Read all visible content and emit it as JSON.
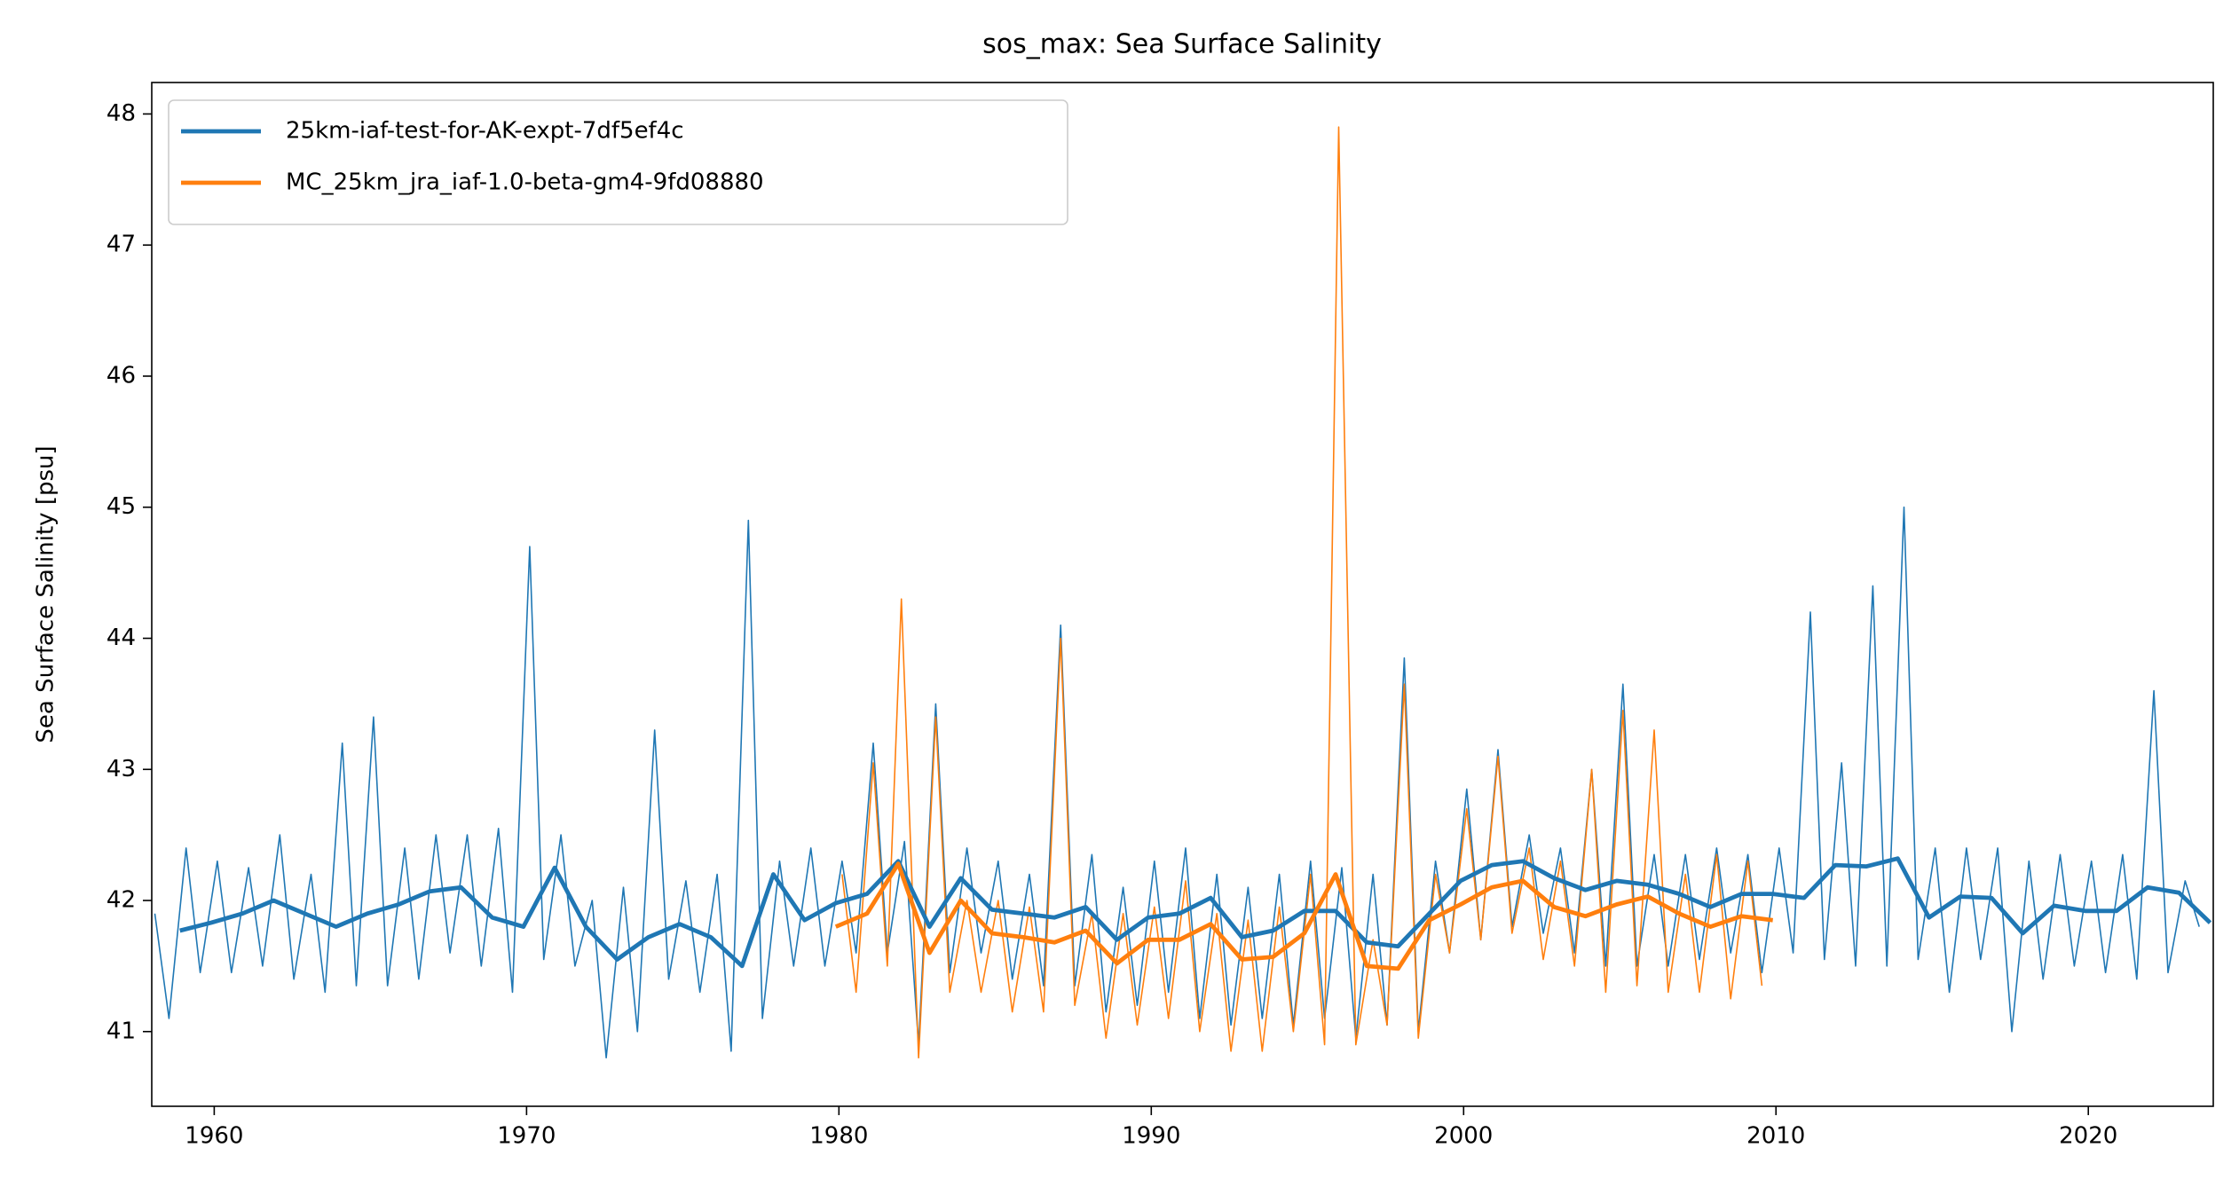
{
  "chart_data": {
    "type": "line",
    "title": "sos_max: Sea Surface Salinity",
    "ylabel": "Sea Surface Salinity [psu]",
    "xlim": [
      1958,
      2024
    ],
    "ylim": [
      40.43,
      48.24
    ],
    "xticks": [
      1960,
      1970,
      1980,
      1990,
      2000,
      2010,
      2020
    ],
    "yticks": [
      41,
      42,
      43,
      44,
      45,
      46,
      47,
      48
    ],
    "legend": "upper left",
    "grid": false,
    "series": [
      {
        "name": "25km-iaf-test-for-AK-expt-7df5ef4c",
        "color": "#1f77b4",
        "x": [
          1958.9,
          1959.9,
          1960.9,
          1961.9,
          1962.9,
          1963.9,
          1964.9,
          1965.9,
          1966.9,
          1967.9,
          1968.9,
          1969.9,
          1970.9,
          1971.9,
          1972.9,
          1973.9,
          1974.9,
          1975.9,
          1976.9,
          1977.9,
          1978.9,
          1979.9,
          1980.9,
          1981.9,
          1982.9,
          1983.9,
          1984.9,
          1985.9,
          1986.9,
          1987.9,
          1988.9,
          1989.9,
          1990.9,
          1991.9,
          1992.9,
          1993.9,
          1994.9,
          1995.9,
          1996.9,
          1997.9,
          1998.9,
          1999.9,
          2000.9,
          2001.9,
          2002.9,
          2003.9,
          2004.9,
          2005.9,
          2006.9,
          2007.9,
          2008.9,
          2009.9,
          2010.9,
          2011.9,
          2012.9,
          2013.9,
          2014.9,
          2015.9,
          2016.9,
          2017.9,
          2018.9,
          2019.9,
          2020.9,
          2021.9,
          2022.9,
          2023.9
        ],
        "values": [
          41.77,
          41.83,
          41.9,
          42.0,
          41.9,
          41.8,
          41.9,
          41.97,
          42.07,
          42.1,
          41.87,
          41.8,
          42.25,
          41.8,
          41.55,
          41.72,
          41.82,
          41.72,
          41.5,
          42.2,
          41.85,
          41.98,
          42.05,
          42.3,
          41.8,
          42.17,
          41.93,
          41.9,
          41.87,
          41.95,
          41.7,
          41.87,
          41.9,
          42.02,
          41.72,
          41.77,
          41.92,
          41.92,
          41.68,
          41.65,
          41.9,
          42.15,
          42.27,
          42.3,
          42.17,
          42.08,
          42.15,
          42.12,
          42.05,
          41.95,
          42.05,
          42.05,
          42.02,
          42.27,
          42.26,
          42.32,
          41.87,
          42.03,
          42.02,
          41.75,
          41.96,
          41.92,
          41.92,
          42.1,
          42.06,
          41.83
        ],
        "monthly_x": [
          1958.1,
          1958.55,
          1959.1,
          1959.55,
          1960.1,
          1960.55,
          1961.1,
          1961.55,
          1962.1,
          1962.55,
          1963.1,
          1963.55,
          1964.1,
          1964.55,
          1965.1,
          1965.55,
          1966.1,
          1966.55,
          1967.1,
          1967.55,
          1968.1,
          1968.55,
          1969.1,
          1969.55,
          1970.1,
          1970.55,
          1971.1,
          1971.55,
          1972.1,
          1972.55,
          1973.1,
          1973.55,
          1974.1,
          1974.55,
          1975.1,
          1975.55,
          1976.1,
          1976.55,
          1977.1,
          1977.55,
          1978.1,
          1978.55,
          1979.1,
          1979.55,
          1980.1,
          1980.55,
          1981.1,
          1981.55,
          1982.1,
          1982.55,
          1983.1,
          1983.55,
          1984.1,
          1984.55,
          1985.1,
          1985.55,
          1986.1,
          1986.55,
          1987.1,
          1987.55,
          1988.1,
          1988.55,
          1989.1,
          1989.55,
          1990.1,
          1990.55,
          1991.1,
          1991.55,
          1992.1,
          1992.55,
          1993.1,
          1993.55,
          1994.1,
          1994.55,
          1995.1,
          1995.55,
          1996.1,
          1996.55,
          1997.1,
          1997.55,
          1998.1,
          1998.55,
          1999.1,
          1999.55,
          2000.1,
          2000.55,
          2001.1,
          2001.55,
          2002.1,
          2002.55,
          2003.1,
          2003.55,
          2004.1,
          2004.55,
          2005.1,
          2005.55,
          2006.1,
          2006.55,
          2007.1,
          2007.55,
          2008.1,
          2008.55,
          2009.1,
          2009.55,
          2010.1,
          2010.55,
          2011.1,
          2011.55,
          2012.1,
          2012.55,
          2013.1,
          2013.55,
          2014.1,
          2014.55,
          2015.1,
          2015.55,
          2016.1,
          2016.55,
          2017.1,
          2017.55,
          2018.1,
          2018.55,
          2019.1,
          2019.55,
          2020.1,
          2020.55,
          2021.1,
          2021.55,
          2022.1,
          2022.55,
          2023.1,
          2023.55
        ],
        "monthly_values": [
          41.9,
          41.1,
          42.4,
          41.45,
          42.3,
          41.45,
          42.25,
          41.5,
          42.5,
          41.4,
          42.2,
          41.3,
          43.2,
          41.35,
          43.4,
          41.35,
          42.4,
          41.4,
          42.5,
          41.6,
          42.5,
          41.5,
          42.55,
          41.3,
          44.7,
          41.55,
          42.5,
          41.5,
          42.0,
          40.8,
          42.1,
          41.0,
          43.3,
          41.4,
          42.15,
          41.3,
          42.2,
          40.85,
          44.9,
          41.1,
          42.3,
          41.5,
          42.4,
          41.5,
          42.3,
          41.6,
          43.2,
          41.6,
          42.45,
          40.9,
          43.5,
          41.45,
          42.4,
          41.6,
          42.3,
          41.4,
          42.2,
          41.35,
          44.1,
          41.35,
          42.35,
          41.15,
          42.1,
          41.2,
          42.3,
          41.3,
          42.4,
          41.1,
          42.2,
          41.05,
          42.1,
          41.1,
          42.2,
          41.05,
          42.3,
          41.1,
          42.25,
          40.95,
          42.2,
          41.05,
          43.85,
          41.0,
          42.3,
          41.6,
          42.85,
          41.7,
          43.15,
          41.8,
          42.5,
          41.75,
          42.4,
          41.6,
          43.0,
          41.5,
          43.65,
          41.5,
          42.35,
          41.5,
          42.35,
          41.55,
          42.4,
          41.6,
          42.35,
          41.45,
          42.4,
          41.6,
          44.2,
          41.55,
          43.05,
          41.5,
          44.4,
          41.5,
          45.0,
          41.55,
          42.4,
          41.3,
          42.4,
          41.55,
          42.4,
          41.0,
          42.3,
          41.4,
          42.35,
          41.5,
          42.3,
          41.45,
          42.35,
          41.4,
          43.6,
          41.45,
          42.15,
          41.8
        ]
      },
      {
        "name": "MC_25km_jra_iaf-1.0-beta-gm4-9fd08880",
        "color": "#ff7f0e",
        "x": [
          1979.9,
          1980.9,
          1981.9,
          1982.9,
          1983.9,
          1984.9,
          1985.9,
          1986.9,
          1987.9,
          1988.9,
          1989.9,
          1990.9,
          1991.9,
          1992.9,
          1993.9,
          1994.9,
          1995.9,
          1996.9,
          1997.9,
          1998.9,
          1999.9,
          2000.9,
          2001.9,
          2002.9,
          2003.9,
          2004.9,
          2005.9,
          2006.9,
          2007.9,
          2008.9,
          2009.9
        ],
        "values": [
          41.8,
          41.9,
          42.28,
          41.6,
          42.0,
          41.75,
          41.72,
          41.68,
          41.77,
          41.52,
          41.7,
          41.7,
          41.82,
          41.55,
          41.57,
          41.75,
          42.2,
          41.5,
          41.48,
          41.85,
          41.97,
          42.1,
          42.15,
          41.95,
          41.88,
          41.97,
          42.03,
          41.9,
          41.8,
          41.88,
          41.85
        ],
        "monthly_x": [
          1980.1,
          1980.55,
          1981.1,
          1981.55,
          1982.0,
          1982.55,
          1983.1,
          1983.55,
          1984.1,
          1984.55,
          1985.1,
          1985.55,
          1986.1,
          1986.55,
          1987.1,
          1987.55,
          1988.1,
          1988.55,
          1989.1,
          1989.55,
          1990.1,
          1990.55,
          1991.1,
          1991.55,
          1992.1,
          1992.55,
          1993.1,
          1993.55,
          1994.1,
          1994.55,
          1995.1,
          1995.55,
          1996.0,
          1996.55,
          1997.1,
          1997.55,
          1998.1,
          1998.55,
          1999.1,
          1999.55,
          2000.1,
          2000.55,
          2001.1,
          2001.55,
          2002.1,
          2002.55,
          2003.1,
          2003.55,
          2004.1,
          2004.55,
          2005.1,
          2005.55,
          2006.1,
          2006.55,
          2007.1,
          2007.55,
          2008.1,
          2008.55,
          2009.1,
          2009.55
        ],
        "monthly_values": [
          42.2,
          41.3,
          43.05,
          41.5,
          44.3,
          40.8,
          43.4,
          41.3,
          42.0,
          41.3,
          42.0,
          41.15,
          41.95,
          41.15,
          44.0,
          41.2,
          41.9,
          40.95,
          41.9,
          41.05,
          41.95,
          41.1,
          42.15,
          41.0,
          41.9,
          40.85,
          41.85,
          40.85,
          41.95,
          41.0,
          42.2,
          40.9,
          47.9,
          40.9,
          41.7,
          41.05,
          43.65,
          40.95,
          42.2,
          41.6,
          42.7,
          41.7,
          43.1,
          41.75,
          42.4,
          41.55,
          42.3,
          41.5,
          43.0,
          41.3,
          43.45,
          41.35,
          43.3,
          41.3,
          42.2,
          41.3,
          42.35,
          41.25,
          42.3,
          41.35
        ]
      }
    ]
  }
}
